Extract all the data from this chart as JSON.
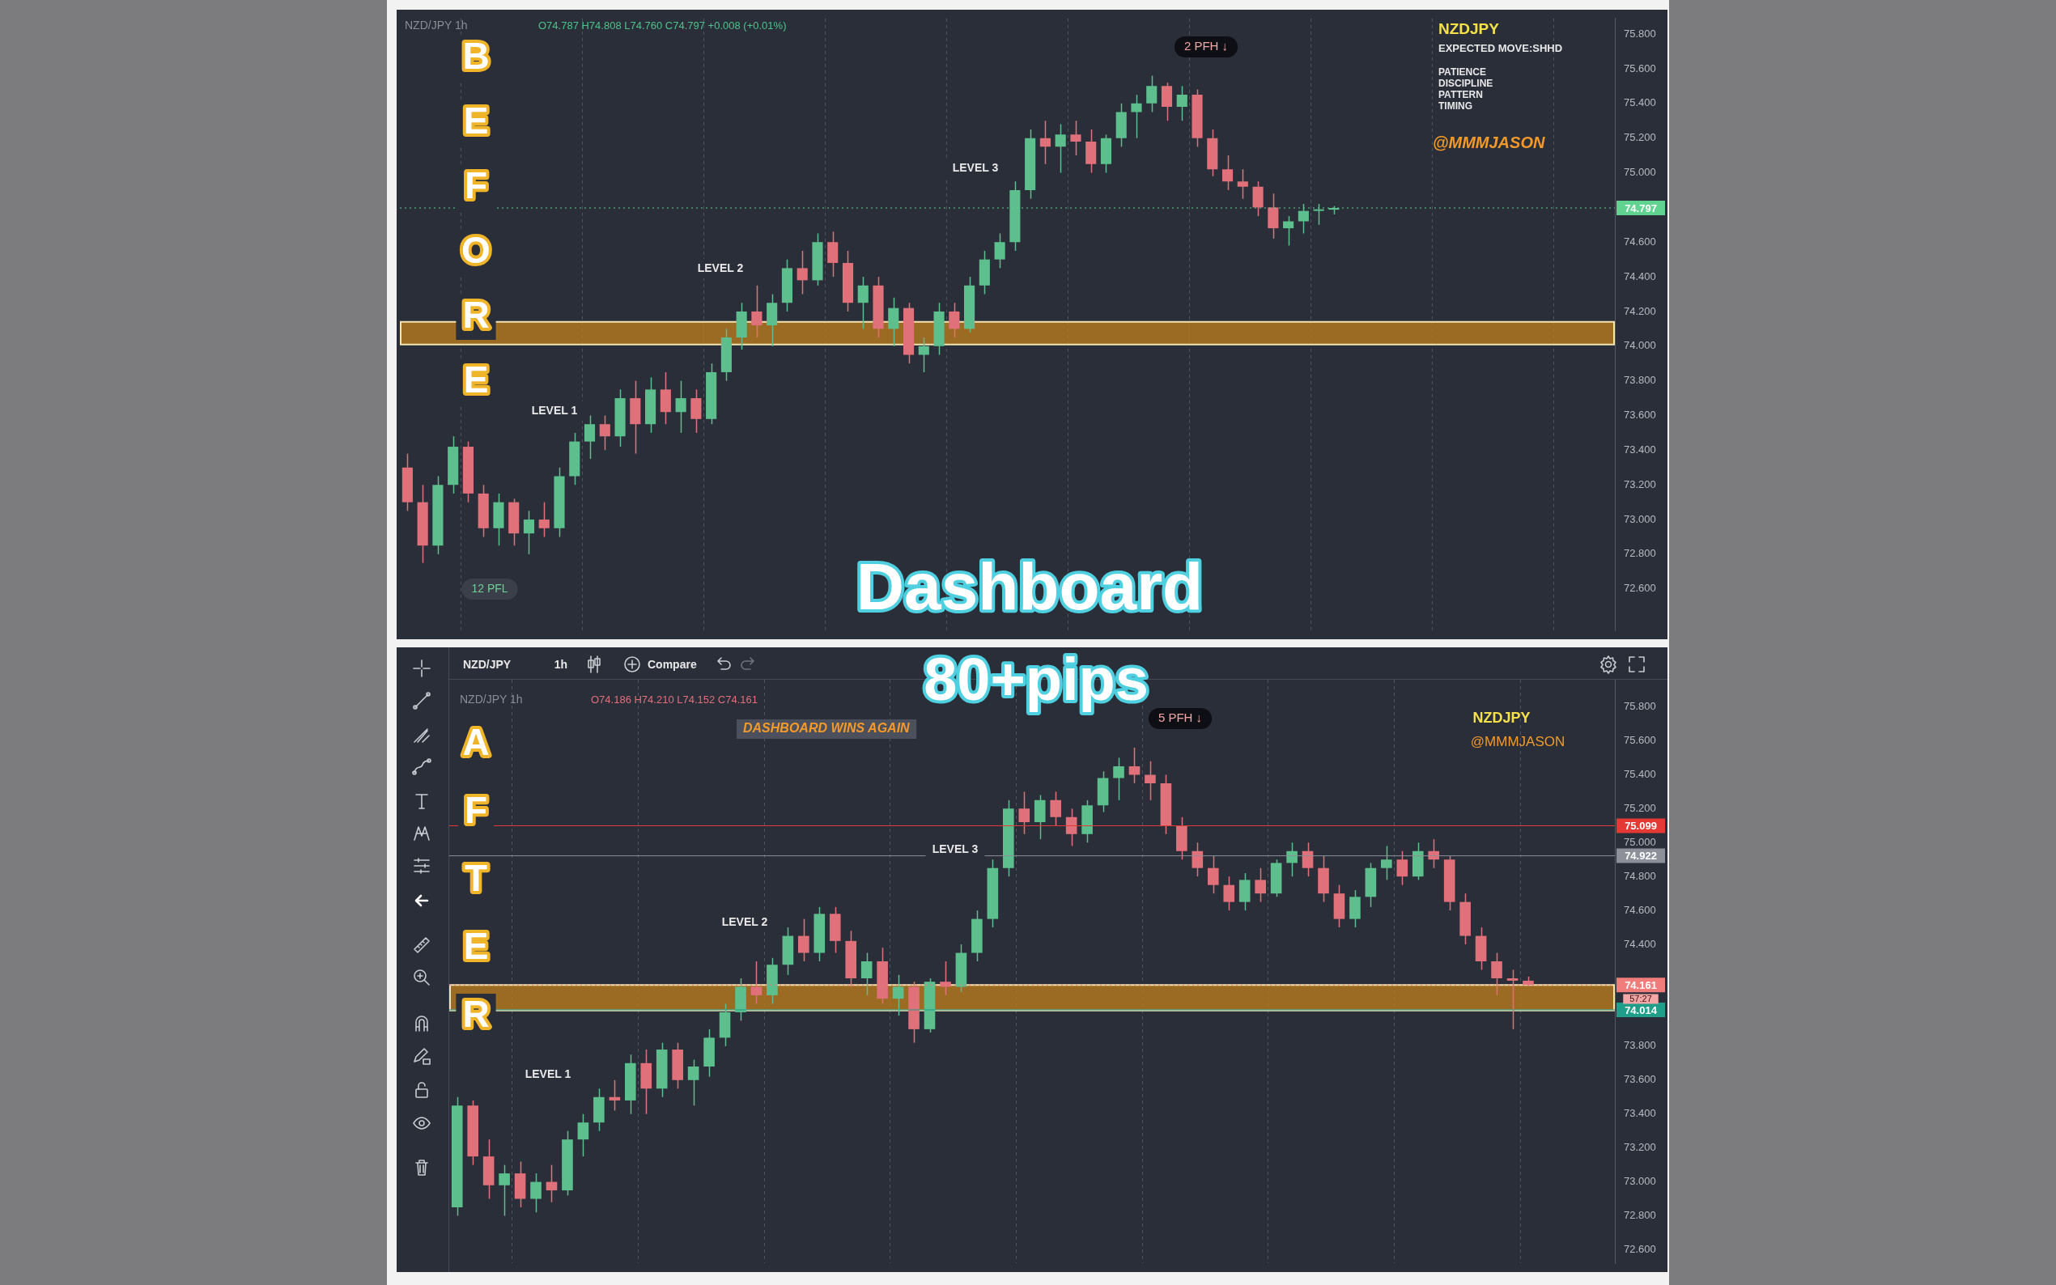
{
  "chart_data": [
    {
      "type": "candlestick",
      "tick_labels": "y",
      "grid": "x",
      "categories": [
        null,
        null,
        null,
        null,
        null,
        null,
        null,
        null,
        null,
        null,
        null,
        null,
        null,
        null,
        null,
        null,
        null,
        null,
        null,
        null,
        null,
        null,
        null,
        null,
        null,
        null,
        null,
        null,
        null,
        null,
        null,
        null,
        null,
        null,
        null,
        null,
        null,
        null,
        null,
        null,
        null,
        null,
        null,
        null,
        null,
        null,
        null,
        null,
        null,
        null,
        null,
        null,
        null,
        null,
        null,
        null,
        null,
        null,
        null,
        null,
        null,
        null,
        null,
        null,
        null,
        null,
        null,
        null,
        null,
        null,
        null,
        null,
        null,
        null,
        null,
        null,
        null,
        null,
        null,
        null
      ],
      "ohlc": [
        [
          73.3,
          73.38,
          73.05,
          73.1
        ],
        [
          73.1,
          73.2,
          72.75,
          72.85
        ],
        [
          72.85,
          73.25,
          72.8,
          73.2
        ],
        [
          73.2,
          73.48,
          73.15,
          73.42
        ],
        [
          73.42,
          73.45,
          73.1,
          73.15
        ],
        [
          73.15,
          73.2,
          72.9,
          72.95
        ],
        [
          72.95,
          73.15,
          72.85,
          73.1
        ],
        [
          73.1,
          73.12,
          72.85,
          72.92
        ],
        [
          72.92,
          73.05,
          72.8,
          73.0
        ],
        [
          73.0,
          73.1,
          72.9,
          72.95
        ],
        [
          72.95,
          73.3,
          72.9,
          73.25
        ],
        [
          73.25,
          73.5,
          73.2,
          73.45
        ],
        [
          73.45,
          73.6,
          73.35,
          73.55
        ],
        [
          73.55,
          73.6,
          73.4,
          73.48
        ],
        [
          73.48,
          73.75,
          73.42,
          73.7
        ],
        [
          73.7,
          73.8,
          73.38,
          73.55
        ],
        [
          73.55,
          73.82,
          73.5,
          73.75
        ],
        [
          73.75,
          73.85,
          73.55,
          73.62
        ],
        [
          73.62,
          73.8,
          73.5,
          73.7
        ],
        [
          73.7,
          73.75,
          73.5,
          73.58
        ],
        [
          73.58,
          73.9,
          73.55,
          73.85
        ],
        [
          73.85,
          74.1,
          73.8,
          74.05
        ],
        [
          74.05,
          74.25,
          73.98,
          74.2
        ],
        [
          74.2,
          74.35,
          74.05,
          74.12
        ],
        [
          74.12,
          74.3,
          74.0,
          74.25
        ],
        [
          74.25,
          74.5,
          74.2,
          74.45
        ],
        [
          74.45,
          74.55,
          74.3,
          74.38
        ],
        [
          74.38,
          74.65,
          74.35,
          74.6
        ],
        [
          74.6,
          74.66,
          74.4,
          74.48
        ],
        [
          74.48,
          74.55,
          74.2,
          74.25
        ],
        [
          74.25,
          74.4,
          74.1,
          74.35
        ],
        [
          74.35,
          74.4,
          74.05,
          74.1
        ],
        [
          74.1,
          74.28,
          74.0,
          74.22
        ],
        [
          74.22,
          74.25,
          73.9,
          73.95
        ],
        [
          73.95,
          74.05,
          73.85,
          74.0
        ],
        [
          74.0,
          74.25,
          73.95,
          74.2
        ],
        [
          74.2,
          74.25,
          74.05,
          74.1
        ],
        [
          74.1,
          74.4,
          74.08,
          74.35
        ],
        [
          74.35,
          74.55,
          74.3,
          74.5
        ],
        [
          74.5,
          74.65,
          74.45,
          74.6
        ],
        [
          74.6,
          74.95,
          74.55,
          74.9
        ],
        [
          74.9,
          75.25,
          74.85,
          75.2
        ],
        [
          75.2,
          75.3,
          75.05,
          75.15
        ],
        [
          75.15,
          75.28,
          75.0,
          75.22
        ],
        [
          75.22,
          75.3,
          75.1,
          75.18
        ],
        [
          75.18,
          75.25,
          75.0,
          75.05
        ],
        [
          75.05,
          75.22,
          75.0,
          75.2
        ],
        [
          75.2,
          75.4,
          75.15,
          75.35
        ],
        [
          75.35,
          75.45,
          75.2,
          75.4
        ],
        [
          75.4,
          75.56,
          75.35,
          75.5
        ],
        [
          75.5,
          75.52,
          75.3,
          75.38
        ],
        [
          75.38,
          75.5,
          75.3,
          75.45
        ],
        [
          75.45,
          75.48,
          75.15,
          75.2
        ],
        [
          75.2,
          75.25,
          74.98,
          75.02
        ],
        [
          75.02,
          75.1,
          74.9,
          74.95
        ],
        [
          74.95,
          75.02,
          74.85,
          74.92
        ],
        [
          74.92,
          74.95,
          74.75,
          74.8
        ],
        [
          74.8,
          74.88,
          74.62,
          74.68
        ],
        [
          74.68,
          74.75,
          74.58,
          74.72
        ],
        [
          74.72,
          74.82,
          74.65,
          74.78
        ],
        [
          74.78,
          74.82,
          74.7,
          74.787
        ],
        [
          74.787,
          74.808,
          74.76,
          74.797
        ],
        null,
        null,
        null,
        null,
        null,
        null,
        null,
        null,
        null,
        null,
        null,
        null,
        null,
        null,
        null,
        null,
        null,
        null
      ],
      "ylim": [
        72.36,
        75.89
      ],
      "yticks": [
        {
          "value": 72.6,
          "label": "72.600"
        },
        {
          "value": 72.8,
          "label": "72.800"
        },
        {
          "value": 73.0,
          "label": "73.000"
        },
        {
          "value": 73.2,
          "label": "73.200"
        },
        {
          "value": 73.4,
          "label": "73.400"
        },
        {
          "value": 73.6,
          "label": "73.600"
        },
        {
          "value": 73.8,
          "label": "73.800"
        },
        {
          "value": 74.0,
          "label": "74.000"
        },
        {
          "value": 74.2,
          "label": "74.200"
        },
        {
          "value": 74.4,
          "label": "74.400"
        },
        {
          "value": 74.6,
          "label": "74.600"
        },
        {
          "value": 75.0,
          "label": "75.000"
        },
        {
          "value": 75.2,
          "label": "75.200"
        },
        {
          "value": 75.4,
          "label": "75.400"
        },
        {
          "value": 75.6,
          "label": "75.600"
        },
        {
          "value": 75.8,
          "label": "75.800"
        }
      ],
      "ref_lines": [
        {
          "axis": "y",
          "value": 74.797,
          "label": "74.797",
          "color": "#5fd38f",
          "line_style": "dotted"
        }
      ],
      "bands": [
        {
          "axis": "y",
          "from": 74.01,
          "to": 74.14,
          "color": "#b87a1e"
        }
      ],
      "annotations": [
        "NZD/JPY 1h",
        "O74.787 H74.808 L74.760 C74.797 +0.008 (+0.01%)",
        "BEFORE",
        "LEVEL 1",
        "LEVEL 2",
        "LEVEL 3",
        "2 PFH ↓",
        "12 PFL",
        "NZDJPY",
        "EXPECTED MOVE:SHHD",
        "PATIENCE",
        "DISCIPLINE",
        "PATTERN",
        "TIMING",
        "@MMMJASON",
        "Dashboard"
      ]
    },
    {
      "type": "candlestick",
      "tick_labels": "y",
      "grid": "x",
      "categories": [
        null,
        null,
        null,
        null,
        null,
        null,
        null,
        null,
        null,
        null,
        null,
        null,
        null,
        null,
        null,
        null,
        null,
        null,
        null,
        null,
        null,
        null,
        null,
        null,
        null,
        null,
        null,
        null,
        null,
        null,
        null,
        null,
        null,
        null,
        null,
        null,
        null,
        null,
        null,
        null,
        null,
        null,
        null,
        null,
        null,
        null,
        null,
        null,
        null,
        null,
        null,
        null,
        null,
        null,
        null,
        null,
        null,
        null,
        null,
        null,
        null,
        null,
        null,
        null,
        null,
        null,
        null,
        null,
        null,
        null,
        null,
        null,
        null,
        null
      ],
      "ohlc": [
        [
          72.85,
          73.5,
          72.8,
          73.45
        ],
        [
          73.45,
          73.48,
          73.1,
          73.15
        ],
        [
          73.15,
          73.25,
          72.9,
          72.98
        ],
        [
          72.98,
          73.1,
          72.8,
          73.05
        ],
        [
          73.05,
          73.12,
          72.85,
          72.9
        ],
        [
          72.9,
          73.05,
          72.82,
          73.0
        ],
        [
          73.0,
          73.1,
          72.88,
          72.95
        ],
        [
          72.95,
          73.3,
          72.92,
          73.25
        ],
        [
          73.25,
          73.4,
          73.15,
          73.35
        ],
        [
          73.35,
          73.55,
          73.3,
          73.5
        ],
        [
          73.5,
          73.6,
          73.42,
          73.48
        ],
        [
          73.48,
          73.75,
          73.4,
          73.7
        ],
        [
          73.7,
          73.78,
          73.4,
          73.55
        ],
        [
          73.55,
          73.82,
          73.5,
          73.78
        ],
        [
          73.78,
          73.82,
          73.55,
          73.6
        ],
        [
          73.6,
          73.72,
          73.45,
          73.68
        ],
        [
          73.68,
          73.9,
          73.62,
          73.85
        ],
        [
          73.85,
          74.05,
          73.8,
          74.0
        ],
        [
          74.0,
          74.2,
          73.95,
          74.15
        ],
        [
          74.15,
          74.3,
          74.05,
          74.1
        ],
        [
          74.1,
          74.32,
          74.05,
          74.28
        ],
        [
          74.28,
          74.5,
          74.22,
          74.45
        ],
        [
          74.45,
          74.55,
          74.3,
          74.35
        ],
        [
          74.35,
          74.62,
          74.3,
          74.58
        ],
        [
          74.58,
          74.62,
          74.35,
          74.42
        ],
        [
          74.42,
          74.48,
          74.15,
          74.2
        ],
        [
          74.2,
          74.35,
          74.1,
          74.3
        ],
        [
          74.3,
          74.38,
          74.05,
          74.08
        ],
        [
          74.08,
          74.22,
          73.98,
          74.15
        ],
        [
          74.15,
          74.18,
          73.82,
          73.9
        ],
        [
          73.9,
          74.2,
          73.88,
          74.18
        ],
        [
          74.18,
          74.3,
          74.1,
          74.15
        ],
        [
          74.15,
          74.4,
          74.12,
          74.35
        ],
        [
          74.35,
          74.6,
          74.3,
          74.55
        ],
        [
          74.55,
          74.9,
          74.5,
          74.85
        ],
        [
          74.85,
          75.25,
          74.8,
          75.2
        ],
        [
          75.2,
          75.3,
          75.05,
          75.12
        ],
        [
          75.12,
          75.28,
          75.02,
          75.25
        ],
        [
          75.25,
          75.3,
          75.1,
          75.15
        ],
        [
          75.15,
          75.2,
          74.98,
          75.05
        ],
        [
          75.05,
          75.25,
          75.0,
          75.22
        ],
        [
          75.22,
          75.42,
          75.18,
          75.38
        ],
        [
          75.38,
          75.5,
          75.25,
          75.45
        ],
        [
          75.45,
          75.56,
          75.35,
          75.4
        ],
        [
          75.4,
          75.48,
          75.25,
          75.35
        ],
        [
          75.35,
          75.4,
          75.05,
          75.1
        ],
        [
          75.1,
          75.15,
          74.9,
          74.95
        ],
        [
          74.95,
          75.0,
          74.8,
          74.85
        ],
        [
          74.85,
          74.92,
          74.7,
          74.75
        ],
        [
          74.75,
          74.8,
          74.6,
          74.65
        ],
        [
          74.65,
          74.82,
          74.6,
          74.78
        ],
        [
          74.78,
          74.85,
          74.65,
          74.7
        ],
        [
          74.7,
          74.9,
          74.68,
          74.88
        ],
        [
          74.88,
          75.0,
          74.8,
          74.95
        ],
        [
          74.95,
          75.0,
          74.8,
          74.85
        ],
        [
          74.85,
          74.92,
          74.65,
          74.7
        ],
        [
          74.7,
          74.75,
          74.5,
          74.55
        ],
        [
          74.55,
          74.72,
          74.5,
          74.68
        ],
        [
          74.68,
          74.88,
          74.62,
          74.85
        ],
        [
          74.85,
          74.98,
          74.78,
          74.9
        ],
        [
          74.9,
          74.95,
          74.75,
          74.8
        ],
        [
          74.8,
          75.0,
          74.78,
          74.95
        ],
        [
          74.95,
          75.02,
          74.85,
          74.9
        ],
        [
          74.9,
          74.92,
          74.6,
          74.65
        ],
        [
          74.65,
          74.7,
          74.4,
          74.45
        ],
        [
          74.45,
          74.5,
          74.25,
          74.3
        ],
        [
          74.3,
          74.35,
          74.1,
          74.2
        ],
        [
          74.2,
          74.25,
          73.9,
          74.186
        ],
        [
          74.186,
          74.21,
          74.152,
          74.161
        ],
        null,
        null,
        null,
        null,
        null
      ],
      "ylim": [
        72.52,
        75.96
      ],
      "yticks": [
        {
          "value": 72.6,
          "label": "72.600"
        },
        {
          "value": 72.8,
          "label": "72.800"
        },
        {
          "value": 73.0,
          "label": "73.000"
        },
        {
          "value": 73.2,
          "label": "73.200"
        },
        {
          "value": 73.4,
          "label": "73.400"
        },
        {
          "value": 73.6,
          "label": "73.600"
        },
        {
          "value": 73.8,
          "label": "73.800"
        },
        {
          "value": 74.4,
          "label": "74.400"
        },
        {
          "value": 74.6,
          "label": "74.600"
        },
        {
          "value": 74.8,
          "label": "74.800"
        },
        {
          "value": 75.0,
          "label": "75.000"
        },
        {
          "value": 75.2,
          "label": "75.200"
        },
        {
          "value": 75.4,
          "label": "75.400"
        },
        {
          "value": 75.6,
          "label": "75.600"
        },
        {
          "value": 75.8,
          "label": "75.800"
        }
      ],
      "ref_lines": [
        {
          "axis": "y",
          "value": 74.161,
          "label": "74.161",
          "color": "#f07c7c",
          "line_style": "dotted"
        },
        {
          "axis": "y",
          "value": 75.099,
          "label": "75.099",
          "color": "#e53935"
        },
        {
          "axis": "y",
          "value": 74.922,
          "label": "74.922",
          "color": "#8d9099"
        },
        {
          "axis": "y",
          "value": 74.014,
          "label": "74.014",
          "color": "#1f9e8a"
        }
      ],
      "bands": [
        {
          "axis": "y",
          "from": 74.01,
          "to": 74.16,
          "color": "#b87a1e"
        }
      ],
      "annotations": [
        "NZD/JPY",
        "1h",
        "Compare",
        "NZD/JPY 1h",
        "O74.186 H74.210 L74.152 C74.161",
        "DASHBOARD WINS AGAIN",
        "AFTER",
        "LEVEL 1",
        "LEVEL 2",
        "LEVEL 3",
        "5 PFH ↓",
        "NZDJPY",
        "@MMMJASON",
        "80+pips",
        "57:27"
      ]
    }
  ]
}
